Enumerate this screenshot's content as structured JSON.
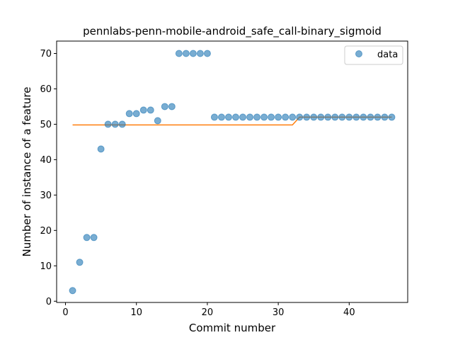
{
  "chart_data": {
    "type": "scatter",
    "title": "pennlabs-penn-mobile-android_safe_call-binary_sigmoid",
    "xlabel": "Commit number",
    "ylabel": "Number of instance of a feature",
    "xlim": [
      -1.25,
      48.25
    ],
    "ylim": [
      -0.35,
      73.5
    ],
    "x_ticks": [
      0,
      10,
      20,
      30,
      40
    ],
    "y_ticks": [
      0,
      10,
      20,
      30,
      40,
      50,
      60,
      70
    ],
    "grid": false,
    "legend": {
      "position": "top-right",
      "entries": [
        "data"
      ]
    },
    "series": [
      {
        "name": "data",
        "kind": "scatter",
        "color": "#1f77b4",
        "x": [
          1,
          2,
          3,
          4,
          5,
          6,
          7,
          8,
          9,
          10,
          11,
          12,
          13,
          14,
          15,
          16,
          17,
          18,
          19,
          20,
          21,
          22,
          23,
          24,
          25,
          26,
          27,
          28,
          29,
          30,
          31,
          32,
          33,
          34,
          35,
          36,
          37,
          38,
          39,
          40,
          41,
          42,
          43,
          44,
          45,
          46
        ],
        "y": [
          3,
          11,
          18,
          18,
          43,
          50,
          50,
          50,
          53,
          53,
          54,
          54,
          51,
          55,
          55,
          70,
          70,
          70,
          70,
          70,
          52,
          52,
          52,
          52,
          52,
          52,
          52,
          52,
          52,
          52,
          52,
          52,
          52,
          52,
          52,
          52,
          52,
          52,
          52,
          52,
          52,
          52,
          52,
          52,
          52,
          52
        ]
      },
      {
        "kind": "line",
        "color": "#ff7f0e",
        "x": [
          1,
          32,
          33,
          46
        ],
        "y": [
          49.8,
          49.8,
          52,
          52
        ]
      }
    ]
  }
}
